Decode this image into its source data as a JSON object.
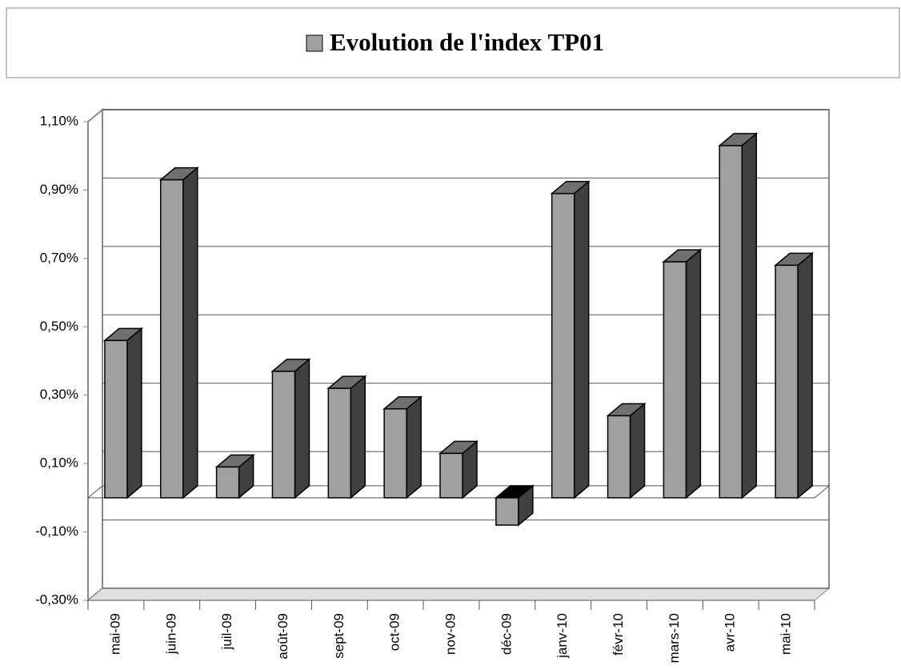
{
  "chart_data": {
    "type": "bar3d",
    "legend": "Evolution de l'index TP01",
    "categories": [
      "mai-09",
      "juin-09",
      "juil-09",
      "août-09",
      "sept-09",
      "oct-09",
      "nov-09",
      "déc-09",
      "janv-10",
      "févr-10",
      "mars-10",
      "avr-10",
      "mai-10"
    ],
    "values": [
      0.46,
      0.93,
      0.09,
      0.37,
      0.32,
      0.26,
      0.13,
      -0.08,
      0.89,
      0.24,
      0.69,
      1.03,
      0.68
    ],
    "color": "#a0a0a0",
    "ylim": [
      -0.3,
      1.1
    ],
    "yticks": [
      {
        "value": -0.3,
        "label": "-0,30%"
      },
      {
        "value": -0.1,
        "label": "-0,10%"
      },
      {
        "value": 0.1,
        "label": "0,10%"
      },
      {
        "value": 0.3,
        "label": "0,30%"
      },
      {
        "value": 0.5,
        "label": "0,50%"
      },
      {
        "value": 0.7,
        "label": "0,70%"
      },
      {
        "value": 0.9,
        "label": "0,90%"
      },
      {
        "value": 1.1,
        "label": "1,10%"
      }
    ],
    "grid": true
  }
}
